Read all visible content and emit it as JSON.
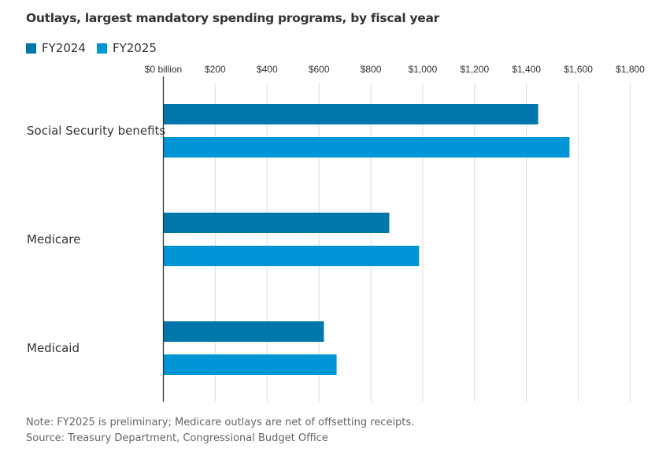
{
  "chart_data": {
    "type": "bar",
    "orientation": "horizontal",
    "title": "Outlays, largest mandatory spending programs, by fiscal year",
    "xlabel": "",
    "ylabel": "",
    "unit": "billion dollars",
    "xlim": [
      0,
      1800
    ],
    "x_ticks": [
      0,
      200,
      400,
      600,
      800,
      1000,
      1200,
      1400,
      1600,
      1800
    ],
    "x_tick_labels": [
      "$0 billion",
      "$200",
      "$400",
      "$600",
      "$800",
      "$1,000",
      "$1,200",
      "$1,400",
      "$1,600",
      "$1,800"
    ],
    "grid": true,
    "legend_position": "top-left",
    "categories": [
      "Social Security benefits",
      "Medicare",
      "Medicaid"
    ],
    "series": [
      {
        "name": "FY2024",
        "color": "#0077aa",
        "values": [
          1445,
          871,
          619
        ]
      },
      {
        "name": "FY2025",
        "color": "#0096d6",
        "values": [
          1566,
          986,
          668
        ]
      }
    ],
    "note": "Note: FY2025 is preliminary; Medicare outlays are net of offsetting receipts.",
    "source": "Source: Treasury Department, Congressional Budget Office"
  }
}
